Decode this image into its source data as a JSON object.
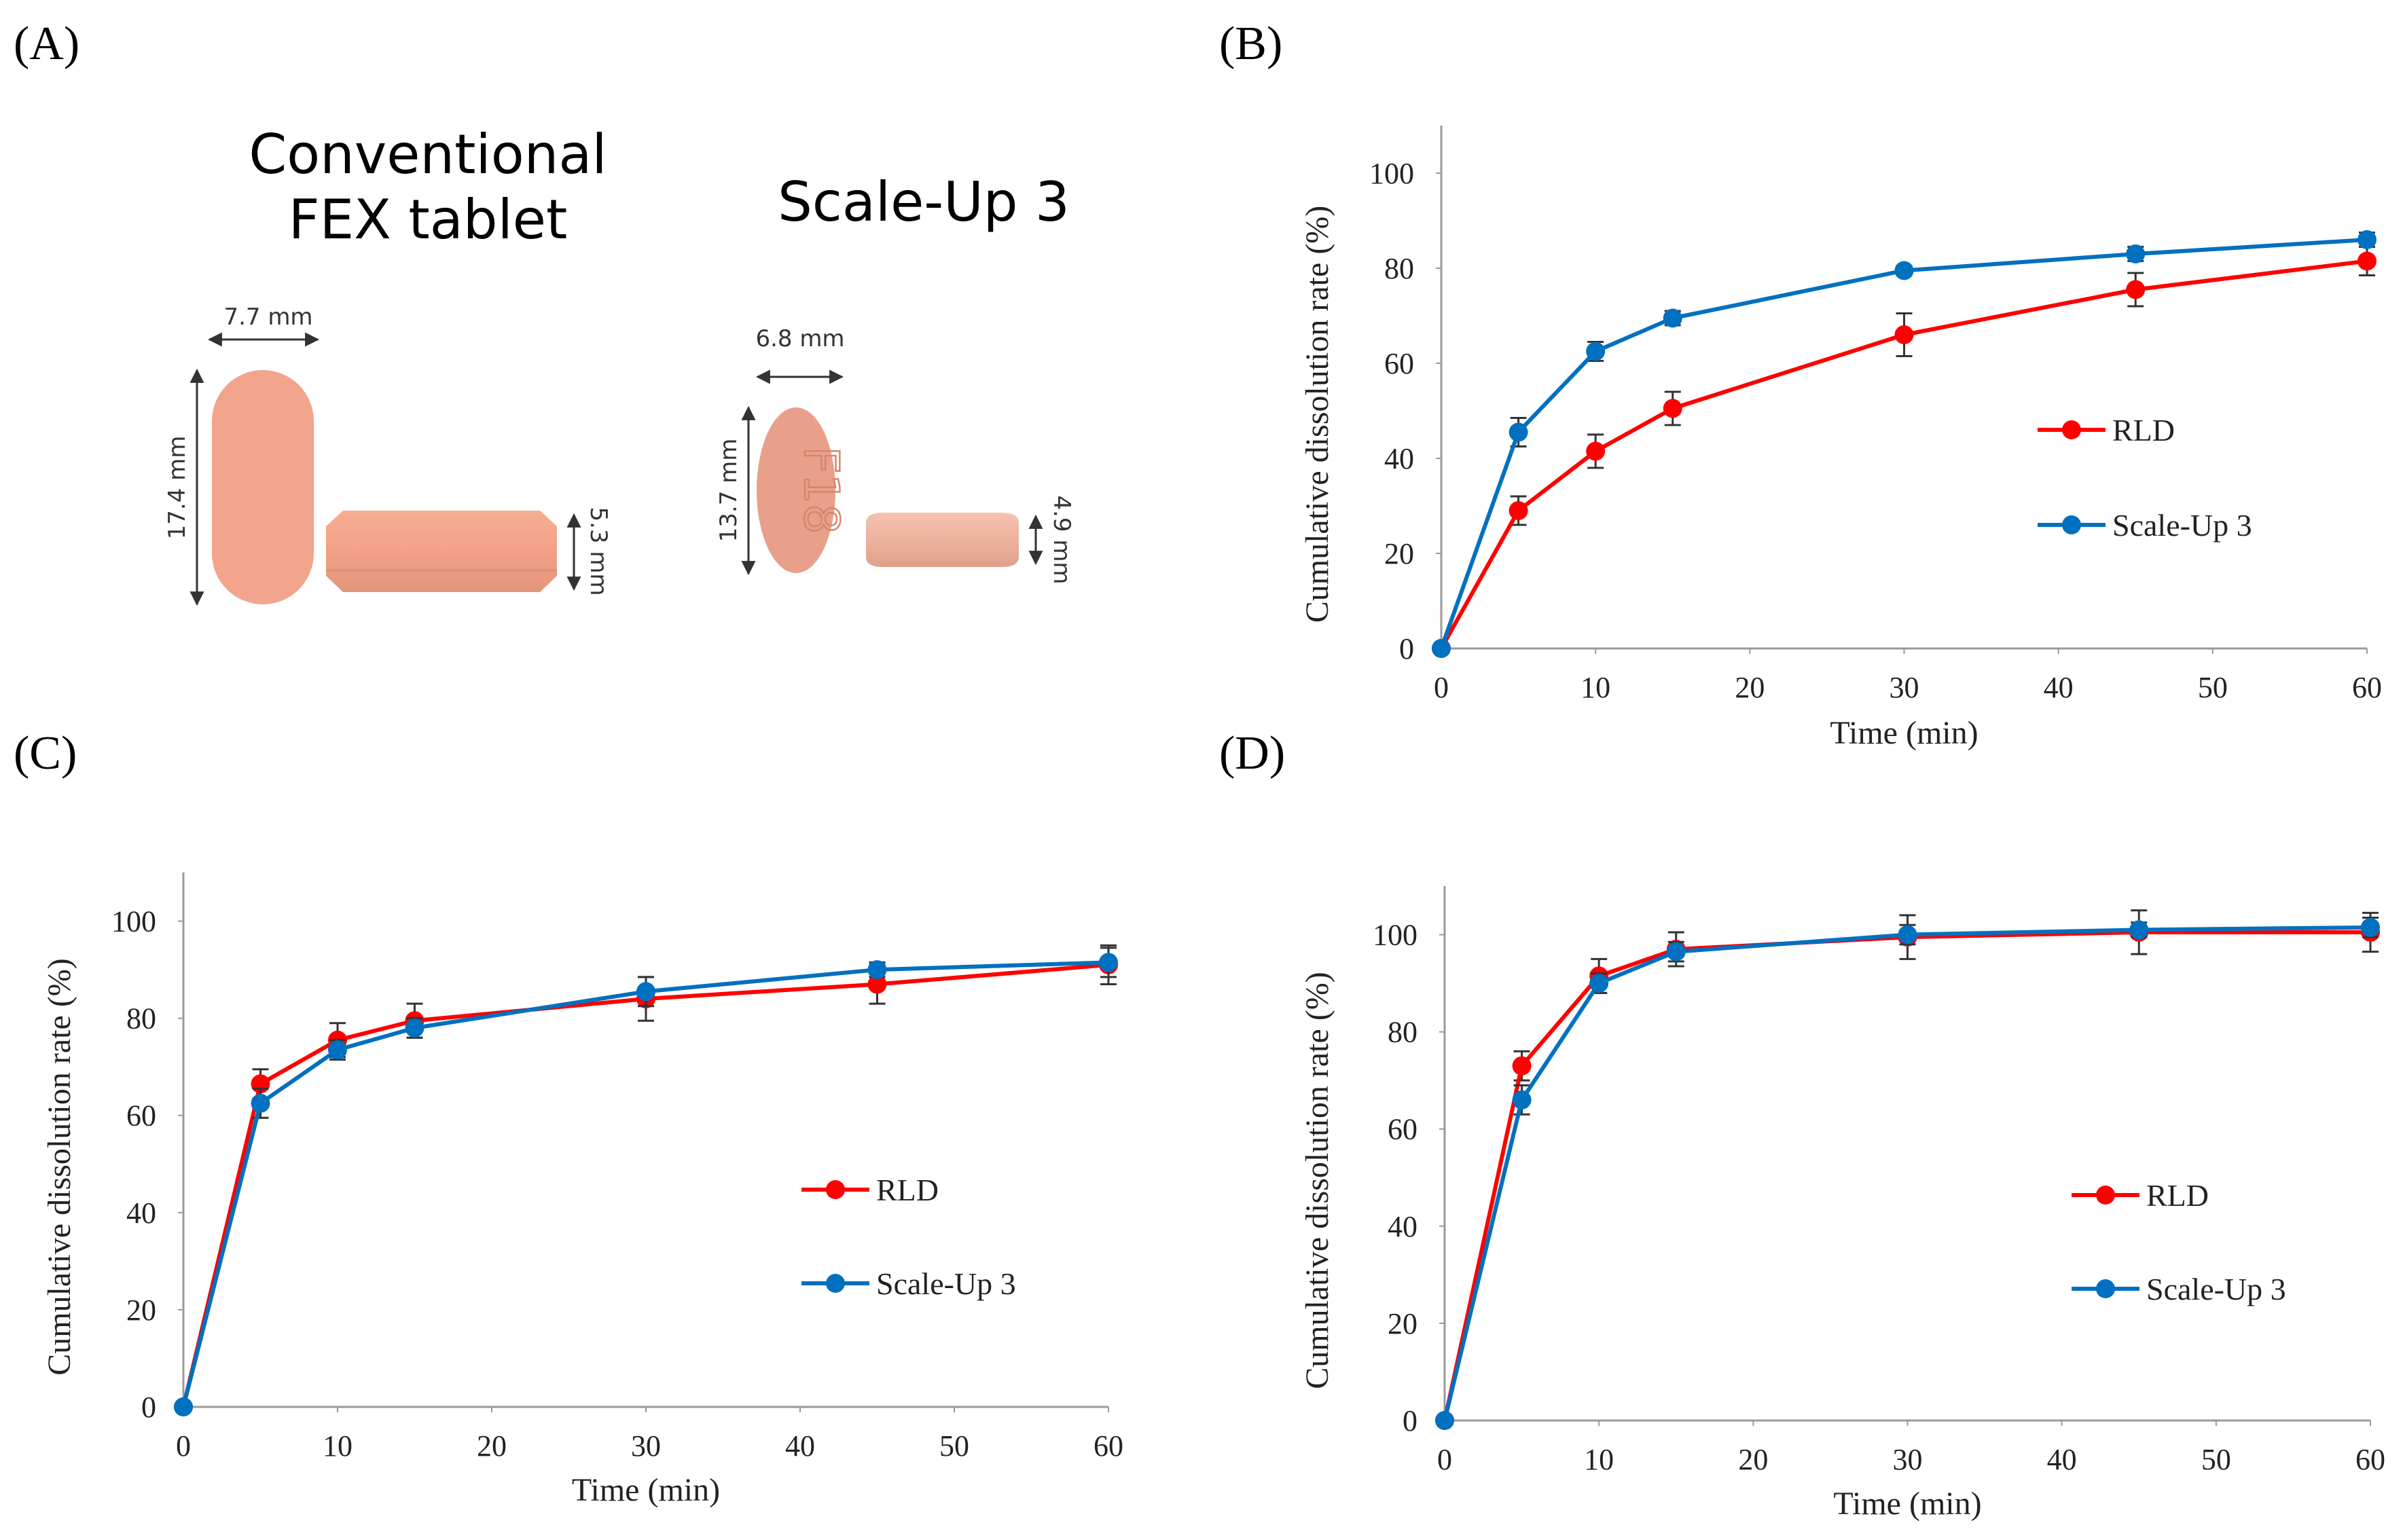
{
  "panel_labels": [
    "(A)",
    "(B)",
    "(C)",
    "(D)"
  ],
  "panel_a": {
    "conventional_title_line1": "Conventional",
    "conventional_title_line2": "FEX tablet",
    "scaleup_title": "Scale-Up 3",
    "conv_width": "7.7 mm",
    "conv_length": "17.4 mm",
    "conv_thickness": "5.3 mm",
    "su_width": "6.8 mm",
    "su_length": "13.7 mm",
    "su_thickness": "4.9 mm",
    "su_imprint": "F18",
    "tablet_color": "#F2A48C",
    "tablet_color_scaleup": "#E9A08A"
  },
  "chart_data": [
    {
      "type": "line",
      "panel": "(B)",
      "x": [
        0,
        5,
        10,
        15,
        30,
        45,
        60
      ],
      "xlabel": "Time (min)",
      "ylabel": "Cumulative dissolution rate (%)",
      "xlim": [
        0,
        60
      ],
      "ylim": [
        0,
        110
      ],
      "xticks": [
        0,
        10,
        20,
        30,
        40,
        50,
        60
      ],
      "yticks": [
        0,
        20,
        40,
        60,
        80,
        100
      ],
      "legend_position": "center-right",
      "series": [
        {
          "name": "RLD",
          "color": "#FF0000",
          "values": [
            0,
            29,
            41.5,
            50.5,
            66,
            75.5,
            81.5
          ],
          "errors": [
            0,
            3,
            3.5,
            3.5,
            4.5,
            3.5,
            3
          ]
        },
        {
          "name": "Scale-Up 3",
          "color": "#0070C0",
          "values": [
            0,
            45.5,
            62.5,
            69.5,
            79.5,
            83,
            86
          ],
          "errors": [
            0,
            3,
            2,
            1.5,
            1,
            1.5,
            1.5
          ]
        }
      ]
    },
    {
      "type": "line",
      "panel": "(C)",
      "x": [
        0,
        5,
        10,
        15,
        30,
        45,
        60
      ],
      "xlabel": "Time (min)",
      "ylabel": "Cumulative dissolution rate (%)",
      "xlim": [
        0,
        60
      ],
      "ylim": [
        0,
        110
      ],
      "xticks": [
        0,
        10,
        20,
        30,
        40,
        50,
        60
      ],
      "yticks": [
        0,
        20,
        40,
        60,
        80,
        100
      ],
      "legend_position": "center-right",
      "series": [
        {
          "name": "RLD",
          "color": "#FF0000",
          "values": [
            0,
            66.5,
            75.5,
            79.5,
            84,
            87,
            91
          ],
          "errors": [
            0,
            3,
            3.5,
            3.5,
            4.5,
            4,
            4
          ]
        },
        {
          "name": "Scale-Up 3",
          "color": "#0070C0",
          "values": [
            0,
            62.5,
            73.5,
            78,
            85.5,
            90,
            91.5
          ],
          "errors": [
            0,
            3,
            2,
            2,
            3,
            1.5,
            3
          ]
        }
      ]
    },
    {
      "type": "line",
      "panel": "(D)",
      "x": [
        0,
        5,
        10,
        15,
        30,
        45,
        60
      ],
      "xlabel": "Time (min)",
      "ylabel": "Cumulative dissolution rate (%)",
      "xlim": [
        0,
        60
      ],
      "ylim": [
        0,
        110
      ],
      "xticks": [
        0,
        10,
        20,
        30,
        40,
        50,
        60
      ],
      "yticks": [
        0,
        20,
        40,
        60,
        80,
        100
      ],
      "legend_position": "center-right",
      "series": [
        {
          "name": "RLD",
          "color": "#FF0000",
          "values": [
            0,
            73,
            91.5,
            97,
            99.5,
            100.5,
            100.5
          ],
          "errors": [
            0,
            3,
            3.5,
            3.5,
            4.5,
            4.5,
            4
          ]
        },
        {
          "name": "Scale-Up 3",
          "color": "#0070C0",
          "values": [
            0,
            66,
            90,
            96.5,
            100,
            101,
            101.5
          ],
          "errors": [
            0,
            3,
            2,
            2,
            2,
            1.5,
            2
          ]
        }
      ]
    }
  ]
}
